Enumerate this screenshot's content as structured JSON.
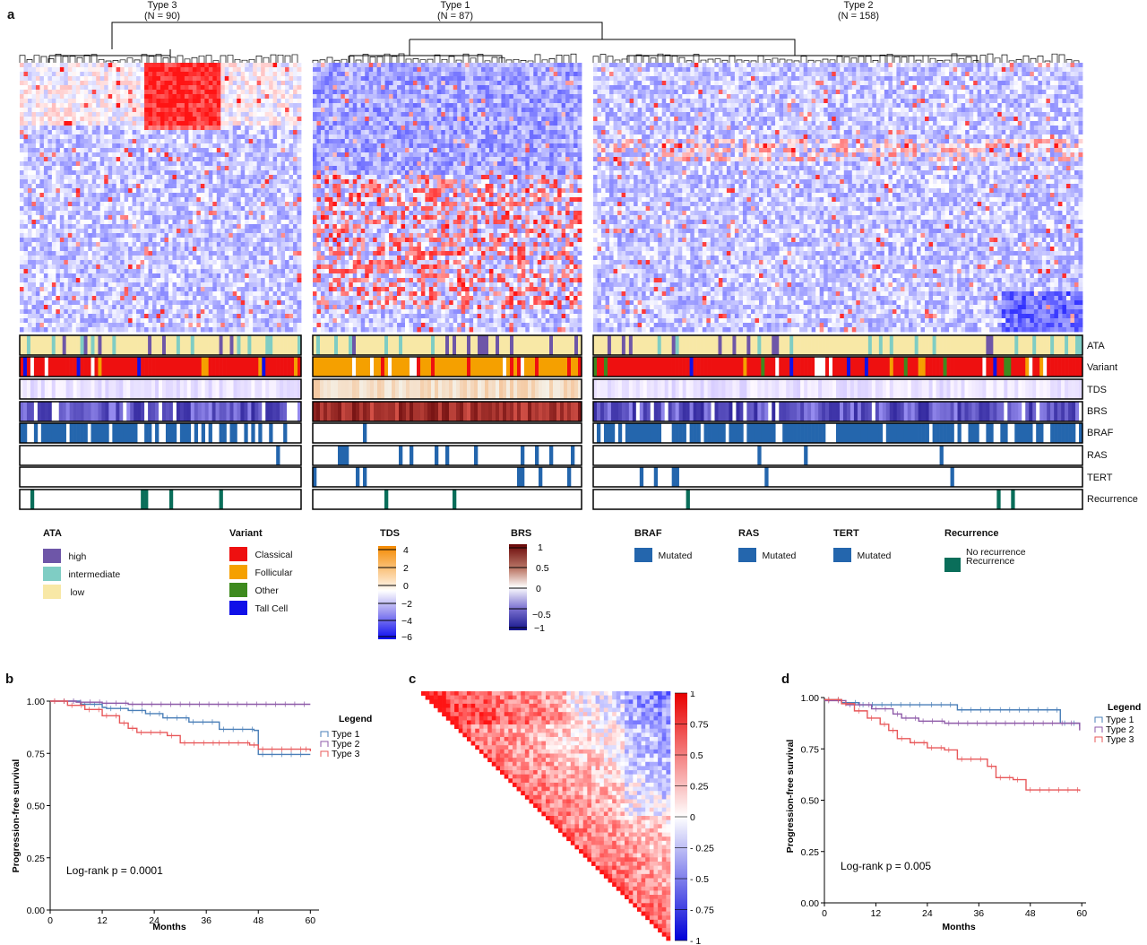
{
  "panel_a": {
    "letter": "a",
    "clusters": [
      {
        "name": "Type 3",
        "n": "(N = 90)"
      },
      {
        "name": "Type 1",
        "n": "(N = 87)"
      },
      {
        "name": "Type 2",
        "n": "(N = 158)"
      }
    ],
    "tracks": [
      "ATA",
      "Variant",
      "TDS",
      "BRS",
      "BRAF",
      "RAS",
      "TERT",
      "Recurrence"
    ],
    "legends": {
      "ata": {
        "title": "ATA",
        "items": [
          "high",
          "intermediate",
          "low"
        ],
        "colors": [
          "#6e56a8",
          "#7fcdc4",
          "#f8e8a6"
        ]
      },
      "variant": {
        "title": "Variant",
        "items": [
          "Classical",
          "Follicular",
          "Other",
          "Tall Cell"
        ],
        "colors": [
          "#ee1010",
          "#f5a000",
          "#3e8a1e",
          "#1010e8"
        ]
      },
      "tds": {
        "title": "TDS",
        "ticks": [
          "4",
          "2",
          "0",
          "−2",
          "−4",
          "−6"
        ]
      },
      "brs": {
        "title": "BRS",
        "ticks": [
          "1",
          "0.5",
          "0",
          "−0.5",
          "−1"
        ]
      },
      "braf": {
        "title": "BRAF",
        "item": "Mutated"
      },
      "ras": {
        "title": "RAS",
        "item": "Mutated"
      },
      "tert": {
        "title": "TERT",
        "item": "Mutated"
      },
      "recurrence": {
        "title": "Recurrence",
        "items": [
          "No recurrence",
          "Recurrence"
        ]
      }
    },
    "colors": {
      "mut": "#2466ad",
      "rec": "#0a6e5a",
      "red": "#ee1010",
      "blue": "#1010e8"
    }
  },
  "panel_b": {
    "letter": "b",
    "annotation": "Log-rank p = 0.0001",
    "legend_title": "Legend",
    "legend_items": [
      "Type 1",
      "Type 2",
      "Type 3"
    ]
  },
  "panel_c": {
    "letter": "c",
    "colorbar_ticks": [
      "1",
      "0.75",
      "0.5",
      "0.25",
      "0",
      "- 0.25",
      "- 0.5",
      "- 0.75",
      "- 1"
    ]
  },
  "panel_d": {
    "letter": "d",
    "annotation": "Log-rank p = 0.005",
    "legend_title": "Legend",
    "legend_items": [
      "Type 1",
      "Type 2",
      "Type 3"
    ]
  },
  "chart_data": [
    {
      "type": "line",
      "panel": "b",
      "xlabel": "Months",
      "ylabel": "Progression-free survival",
      "xticks": [
        0,
        12,
        24,
        36,
        48,
        60
      ],
      "yticks": [
        "0.00",
        "0.25",
        "0.50",
        "0.75",
        "1.00"
      ],
      "xlim": [
        0,
        62
      ],
      "ylim": [
        0,
        1
      ],
      "series": [
        {
          "name": "Type 1",
          "color": "#4a7fb8",
          "x": [
            0,
            7,
            12,
            13,
            18,
            22,
            26,
            32,
            39,
            47,
            48,
            60
          ],
          "y": [
            1.0,
            0.985,
            0.97,
            0.965,
            0.955,
            0.94,
            0.92,
            0.9,
            0.865,
            0.86,
            0.745,
            0.745
          ]
        },
        {
          "name": "Type 2",
          "color": "#8e5aa8",
          "x": [
            0,
            6,
            12,
            18,
            60
          ],
          "y": [
            1.0,
            0.995,
            0.99,
            0.985,
            0.985
          ]
        },
        {
          "name": "Type 3",
          "color": "#e8585a",
          "x": [
            0,
            4,
            8,
            12,
            16,
            18,
            20,
            27,
            30,
            38,
            46,
            48,
            58,
            60
          ],
          "y": [
            1.0,
            0.98,
            0.96,
            0.93,
            0.895,
            0.87,
            0.85,
            0.835,
            0.8,
            0.8,
            0.79,
            0.77,
            0.77,
            0.76
          ]
        }
      ]
    },
    {
      "type": "line",
      "panel": "d",
      "xlabel": "Months",
      "ylabel": "Progression-free survival",
      "xticks": [
        0,
        12,
        24,
        36,
        48,
        60
      ],
      "yticks": [
        "0.00",
        "0.25",
        "0.50",
        "0.75",
        "1.00"
      ],
      "xlim": [
        0,
        61
      ],
      "ylim": [
        0,
        1
      ],
      "series": [
        {
          "name": "Type 1",
          "color": "#4a7fb8",
          "x": [
            0,
            4,
            8,
            24,
            31,
            40,
            55,
            59.5
          ],
          "y": [
            0.99,
            0.975,
            0.965,
            0.965,
            0.94,
            0.94,
            0.875,
            0.86
          ]
        },
        {
          "name": "Type 2",
          "color": "#8e5aa8",
          "x": [
            0,
            5,
            11,
            16,
            18,
            22,
            28,
            59.5
          ],
          "y": [
            0.985,
            0.965,
            0.945,
            0.92,
            0.9,
            0.885,
            0.875,
            0.84
          ]
        },
        {
          "name": "Type 3",
          "color": "#e8585a",
          "x": [
            0,
            4,
            7,
            10,
            13,
            15,
            17,
            20,
            24,
            28,
            31,
            38,
            40,
            44,
            47,
            59.5
          ],
          "y": [
            0.99,
            0.97,
            0.935,
            0.9,
            0.87,
            0.84,
            0.8,
            0.78,
            0.755,
            0.745,
            0.7,
            0.665,
            0.61,
            0.6,
            0.55,
            0.545
          ]
        }
      ]
    }
  ]
}
